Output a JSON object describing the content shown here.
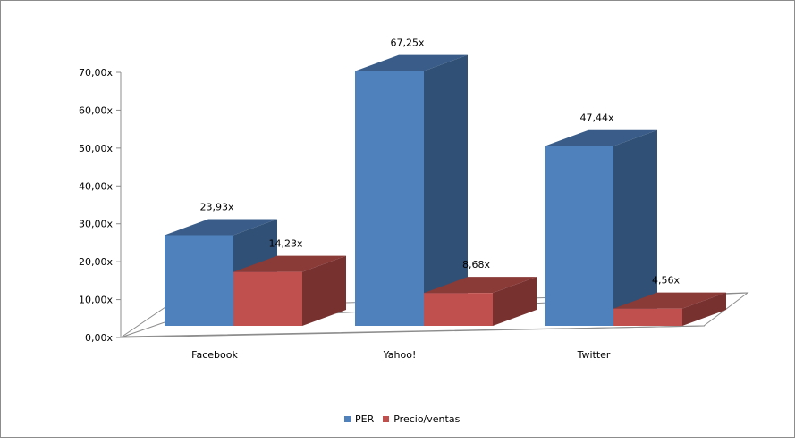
{
  "chart_data": {
    "type": "bar",
    "categories": [
      "Facebook",
      "Yahoo!",
      "Twitter"
    ],
    "series": [
      {
        "name": "PER",
        "values": [
          23.93,
          67.25,
          47.44
        ],
        "labels": [
          "23,93x",
          "67,25x",
          "47,44x"
        ],
        "color": "#4F81BD"
      },
      {
        "name": "Precio/ventas",
        "values": [
          14.23,
          8.68,
          4.56
        ],
        "labels": [
          "14,23x",
          "8,68x",
          "4,56x"
        ],
        "color": "#C0504D"
      }
    ],
    "ylim": [
      0,
      70
    ],
    "yticks": [
      "0,00x",
      "10,00x",
      "20,00x",
      "30,00x",
      "40,00x",
      "50,00x",
      "60,00x",
      "70,00x"
    ],
    "grid": false,
    "legend_position": "bottom",
    "style": "3d-clustered-column"
  }
}
